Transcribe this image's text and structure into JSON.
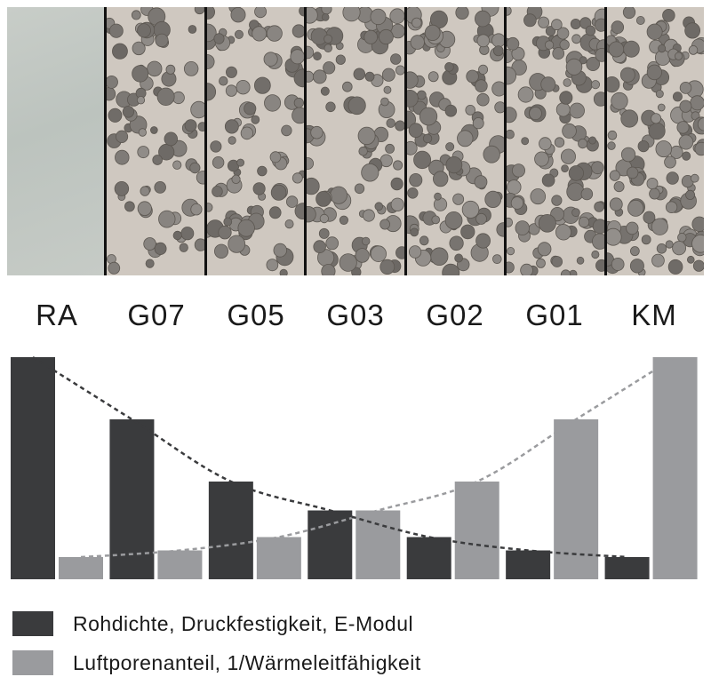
{
  "specimens": [
    "RA",
    "G07",
    "G05",
    "G03",
    "G02",
    "G01",
    "KM"
  ],
  "colors": {
    "dark": "#3a3b3d",
    "light": "#9a9b9e",
    "dark_line": "#3a3b3d",
    "light_line": "#9a9b9e"
  },
  "chart_data": {
    "type": "bar",
    "categories": [
      "RA",
      "G07",
      "G05",
      "G03",
      "G02",
      "G01",
      "KM"
    ],
    "series": [
      {
        "name": "Rohdichte, Druckfestigkeit, E-Modul",
        "values": [
          100,
          72,
          44,
          31,
          19,
          13,
          10
        ]
      },
      {
        "name": "Luftporenanteil, 1/Wärmeleitfähigkeit",
        "values": [
          10,
          13,
          19,
          31,
          44,
          72,
          100
        ]
      }
    ],
    "trend_lines": true,
    "ylim": [
      0,
      100
    ],
    "axes": "none",
    "grid": false,
    "legend": "bottom"
  },
  "legend": {
    "items": [
      {
        "label": "Rohdichte, Druckfestigkeit, E-Modul",
        "color": "#3a3b3d"
      },
      {
        "label": "Luftporenanteil, 1/Wärmeleitfähigkeit",
        "color": "#9a9b9e"
      }
    ]
  }
}
